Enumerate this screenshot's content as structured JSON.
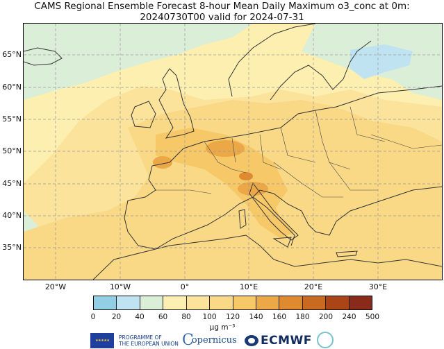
{
  "title": {
    "line1": "CAMS Regional Ensemble Forecast 8-hour Mean Daily Maximum o3_conc at 0m:",
    "line2": "20240730T00 valid for 2024-07-31"
  },
  "map": {
    "type": "filled contour map",
    "extent": {
      "lon": [
        -25,
        40
      ],
      "lat": [
        30,
        70
      ]
    },
    "latitude_labels": [
      {
        "value": 65,
        "label": "65°N"
      },
      {
        "value": 60,
        "label": "60°N"
      },
      {
        "value": 55,
        "label": "55°N"
      },
      {
        "value": 50,
        "label": "50°N"
      },
      {
        "value": 45,
        "label": "45°N"
      },
      {
        "value": 40,
        "label": "40°N"
      },
      {
        "value": 35,
        "label": "35°N"
      }
    ],
    "longitude_labels": [
      {
        "value": -20,
        "label": "20°W"
      },
      {
        "value": -10,
        "label": "10°W"
      },
      {
        "value": 0,
        "label": "0°"
      },
      {
        "value": 10,
        "label": "10°E"
      },
      {
        "value": 20,
        "label": "20°E"
      },
      {
        "value": 30,
        "label": "30°E"
      }
    ],
    "grid": true,
    "coastlines": true
  },
  "colorbar": {
    "unit": "µg m⁻³",
    "ticks": [
      "0",
      "20",
      "40",
      "60",
      "80",
      "100",
      "120",
      "140",
      "160",
      "180",
      "200",
      "240",
      "500"
    ],
    "colors": [
      "#93cfe4",
      "#bfe3f0",
      "#dbeed8",
      "#fcefb0",
      "#fbe39c",
      "#f9d886",
      "#f6c868",
      "#eca847",
      "#df8a2e",
      "#c86a1f",
      "#ab4416",
      "#8a2a1a"
    ]
  },
  "footer": {
    "eu_line1": "PROGRAMME OF",
    "eu_line2": "THE EUROPEAN UNION",
    "eu_stars": "★ ★ ★ ★ ★",
    "copernicus_c": "C",
    "copernicus_text": "opernicus",
    "ecmwf": "ECMWF"
  }
}
